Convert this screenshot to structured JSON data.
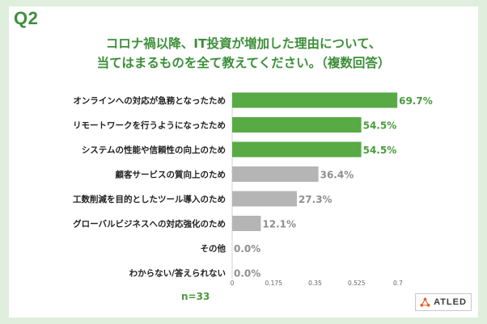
{
  "question_label": "Q2",
  "title_lines": [
    "コロナ禍以降、IT投資が増加した理由について、",
    "当てはまるものを全て教えてください。（複数回答）"
  ],
  "sample_note": "n=33",
  "logo_text": "ATLED",
  "colors": {
    "highlight": "#58aa44",
    "normal": "#b5b5b5",
    "value_highlight": "#4a9a3c",
    "value_normal": "#8f8f8f"
  },
  "chart_data": {
    "type": "bar",
    "orientation": "horizontal",
    "categories": [
      "オンラインへの対応が急務となったため",
      "リモートワークを行うようになったため",
      "システムの性能や信頼性の向上のため",
      "顧客サービスの質向上のため",
      "工数削減を目的としたツール導入のため",
      "グローバルビジネスへの対応強化のため",
      "その他",
      "わからない/答えられない"
    ],
    "values": [
      0.697,
      0.545,
      0.545,
      0.364,
      0.273,
      0.121,
      0.0,
      0.0
    ],
    "value_labels": [
      "69.7%",
      "54.5%",
      "54.5%",
      "36.4%",
      "27.3%",
      "12.1%",
      "0.0%",
      "0.0%"
    ],
    "highlighted": [
      true,
      true,
      true,
      false,
      false,
      false,
      false,
      false
    ],
    "xlim": [
      0,
      0.7
    ],
    "xticks": [
      "0",
      "0.175",
      "0.35",
      "0.525",
      "0.7"
    ],
    "grid": false
  }
}
